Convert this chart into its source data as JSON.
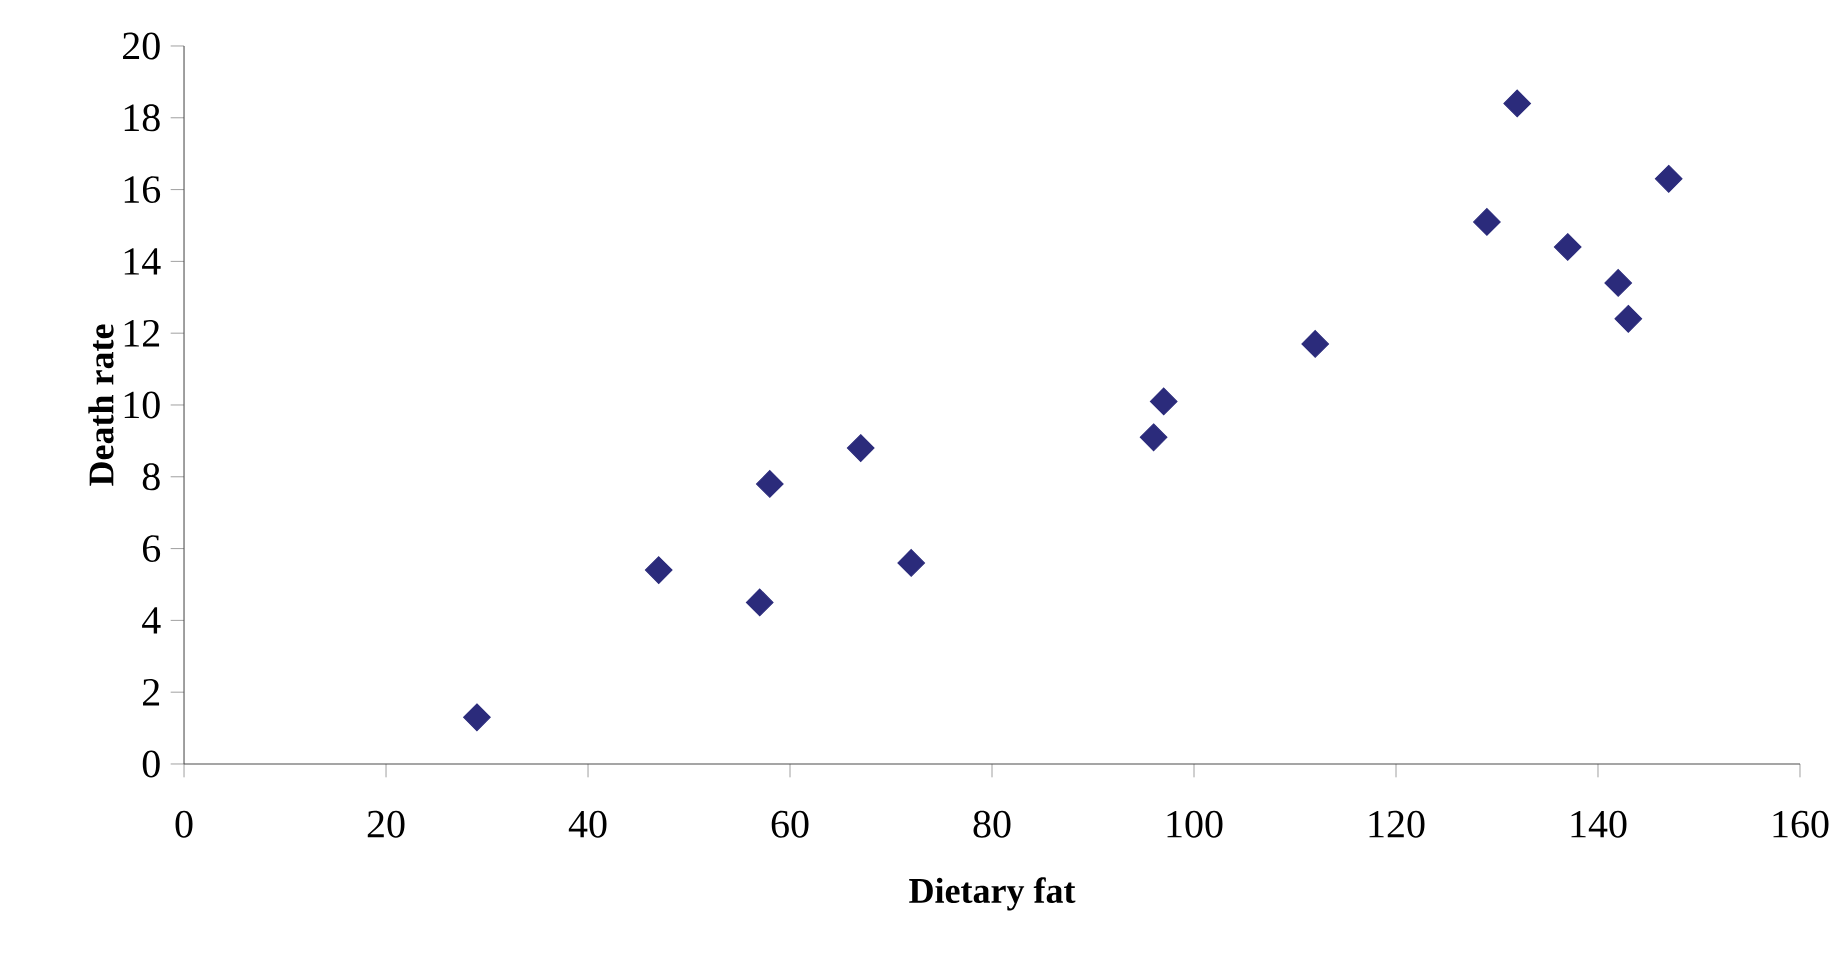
{
  "chart_data": {
    "type": "scatter",
    "xlabel": "Dietary fat",
    "ylabel": "Death rate",
    "x": [
      29,
      47,
      57,
      58,
      67,
      72,
      96,
      97,
      112,
      129,
      132,
      137,
      142,
      143,
      147
    ],
    "values": [
      1.3,
      5.4,
      4.5,
      7.8,
      8.8,
      5.6,
      9.1,
      10.1,
      11.7,
      15.1,
      18.4,
      14.4,
      13.4,
      12.4,
      16.3
    ],
    "color": "#2b2b7b",
    "marker": "diamond",
    "grid": false,
    "xlim": [
      0,
      160
    ],
    "xticks": [
      0,
      20,
      40,
      60,
      80,
      100,
      120,
      140,
      160
    ],
    "ylim": [
      0,
      20
    ],
    "yticks": [
      0,
      2,
      4,
      6,
      8,
      10,
      12,
      14,
      16,
      18,
      20
    ]
  }
}
